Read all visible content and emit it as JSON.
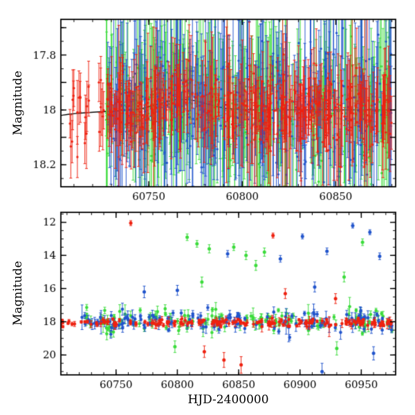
{
  "figure": {
    "background": "#ffffff",
    "axis_color": "#000000",
    "xlabel": "HJD-2400000",
    "ylabel": "Magnitude",
    "series_colors": {
      "red": "#ee2211",
      "green": "#3cdc3c",
      "blue": "#2255cc"
    },
    "model_line_color": "#000000",
    "seed": 42
  },
  "chart_data": [
    {
      "type": "scatter",
      "panel": "top",
      "title": "",
      "xlabel": "",
      "ylabel": "Magnitude",
      "xlim": [
        60703,
        60882
      ],
      "ylim": [
        17.67,
        18.28
      ],
      "y_axis_inverted_magnitude": true,
      "grid": false,
      "legend": null,
      "xticks": {
        "major": [
          60750,
          60800,
          60850
        ],
        "labels": [
          "60750",
          "60800",
          "60850"
        ],
        "minor_step": 10
      },
      "yticks": {
        "major": [
          17.7,
          17.8,
          17.9,
          18.0,
          18.1,
          18.2
        ],
        "labels": [
          "",
          "17.8",
          "",
          "18",
          "",
          "18.2"
        ],
        "minor_step": 0.05
      },
      "scatter_ramp": [
        0.75,
        1.6
      ],
      "bump": {
        "center": 60768,
        "sigma": 12,
        "amp": -0.04
      },
      "series": [
        {
          "name": "band-green",
          "color_key": "green",
          "n": 330,
          "x_range": [
            60727,
            60880
          ],
          "mag_base": 18.0,
          "mag_scatter": 0.085,
          "err_base": 0.05,
          "err_scatter": 0.16,
          "big_err_frac": 0.13,
          "big_err_mult": 3.2
        },
        {
          "name": "band-blue",
          "color_key": "blue",
          "n": 300,
          "x_range": [
            60727,
            60880
          ],
          "mag_base": 18.0,
          "mag_scatter": 0.095,
          "err_base": 0.05,
          "err_scatter": 0.15,
          "big_err_frac": 0.12,
          "big_err_mult": 3.2
        },
        {
          "name": "band-red",
          "color_key": "red",
          "n": 430,
          "x_range": [
            60727,
            60880
          ],
          "mag_base": 18.0,
          "mag_scatter": 0.05,
          "err_base": 0.03,
          "err_scatter": 0.07,
          "big_err_frac": 0.05,
          "big_err_mult": 3.0
        },
        {
          "name": "band-red-early",
          "color_key": "red",
          "n": 24,
          "x_range": [
            60704,
            60726
          ],
          "mag_base": 18.0,
          "mag_scatter": 0.11,
          "err_base": 0.05,
          "err_scatter": 0.05,
          "big_err_frac": 0.0,
          "big_err_mult": 1.0
        }
      ],
      "outliers": [],
      "model_line": [
        [
          60703,
          18.02
        ],
        [
          60707,
          18.016
        ],
        [
          60711,
          18.013
        ],
        [
          60715,
          18.011
        ],
        [
          60719,
          18.009
        ],
        [
          60723,
          18.007
        ],
        [
          60727,
          18.006
        ],
        [
          60731,
          18.005
        ],
        [
          60735,
          18.003
        ],
        [
          60739,
          18.001
        ],
        [
          60743,
          17.998
        ],
        [
          60747,
          17.994
        ],
        [
          60751,
          17.987
        ],
        [
          60755,
          17.979
        ],
        [
          60759,
          17.971
        ],
        [
          60763,
          17.964
        ],
        [
          60767,
          17.961
        ],
        [
          60771,
          17.962
        ],
        [
          60775,
          17.967
        ],
        [
          60779,
          17.974
        ],
        [
          60783,
          17.982
        ],
        [
          60787,
          17.989
        ],
        [
          60791,
          17.994
        ],
        [
          60795,
          17.997
        ],
        [
          60799,
          17.998
        ],
        [
          60805,
          18.0
        ],
        [
          60815,
          18.0
        ],
        [
          60830,
          18.0
        ],
        [
          60850,
          18.0
        ],
        [
          60880,
          18.0
        ]
      ]
    },
    {
      "type": "scatter",
      "panel": "bottom",
      "title": "",
      "xlabel": "HJD-2400000",
      "ylabel": "Magnitude",
      "xlim": [
        60705,
        60978
      ],
      "ylim": [
        11.4,
        21.2
      ],
      "y_axis_inverted_magnitude": true,
      "grid": false,
      "legend": null,
      "xticks": {
        "major": [
          60750,
          60800,
          60850,
          60900,
          60950
        ],
        "labels": [
          "60750",
          "60800",
          "60850",
          "60900",
          "60950"
        ],
        "minor_step": 10
      },
      "yticks": {
        "major": [
          12,
          14,
          16,
          18,
          20
        ],
        "labels": [
          "12",
          "14",
          "16",
          "18",
          "20"
        ],
        "minor_step": 0.5
      },
      "scatter_ramp": null,
      "bump": null,
      "series": [
        {
          "name": "band-green",
          "color_key": "green",
          "n": 145,
          "x_range": [
            60722,
            60975
          ],
          "mag_base": 17.95,
          "mag_scatter": 0.3,
          "err_base": 0.1,
          "err_scatter": 0.16,
          "big_err_frac": 0.05,
          "big_err_mult": 2.0
        },
        {
          "name": "band-blue",
          "color_key": "blue",
          "n": 145,
          "x_range": [
            60722,
            60975
          ],
          "mag_base": 18.0,
          "mag_scatter": 0.33,
          "err_base": 0.1,
          "err_scatter": 0.16,
          "big_err_frac": 0.05,
          "big_err_mult": 2.0
        },
        {
          "name": "band-red",
          "color_key": "red",
          "n": 175,
          "x_range": [
            60705,
            60975
          ],
          "mag_base": 18.05,
          "mag_scatter": 0.1,
          "err_base": 0.06,
          "err_scatter": 0.1,
          "big_err_frac": 0.04,
          "big_err_mult": 2.2
        }
      ],
      "outliers": [
        {
          "color_key": "red",
          "x": 60762,
          "mag": 12.05,
          "err": 0.15
        },
        {
          "color_key": "red",
          "x": 60878,
          "mag": 12.8,
          "err": 0.15
        },
        {
          "color_key": "red",
          "x": 60888,
          "mag": 16.3,
          "err": 0.3
        },
        {
          "color_key": "red",
          "x": 60838,
          "mag": 20.3,
          "err": 0.45
        },
        {
          "color_key": "red",
          "x": 60852,
          "mag": 20.6,
          "err": 0.5
        },
        {
          "color_key": "red",
          "x": 60822,
          "mag": 19.8,
          "err": 0.35
        },
        {
          "color_key": "red",
          "x": 60929,
          "mag": 16.6,
          "err": 0.3
        },
        {
          "color_key": "green",
          "x": 60808,
          "mag": 12.9,
          "err": 0.2
        },
        {
          "color_key": "green",
          "x": 60816,
          "mag": 13.3,
          "err": 0.2
        },
        {
          "color_key": "green",
          "x": 60826,
          "mag": 13.6,
          "err": 0.25
        },
        {
          "color_key": "green",
          "x": 60846,
          "mag": 13.5,
          "err": 0.2
        },
        {
          "color_key": "green",
          "x": 60856,
          "mag": 14.0,
          "err": 0.25
        },
        {
          "color_key": "green",
          "x": 60864,
          "mag": 14.6,
          "err": 0.3
        },
        {
          "color_key": "green",
          "x": 60871,
          "mag": 13.8,
          "err": 0.25
        },
        {
          "color_key": "green",
          "x": 60820,
          "mag": 15.6,
          "err": 0.3
        },
        {
          "color_key": "green",
          "x": 60936,
          "mag": 15.3,
          "err": 0.3
        },
        {
          "color_key": "green",
          "x": 60951,
          "mag": 13.2,
          "err": 0.2
        },
        {
          "color_key": "green",
          "x": 60930,
          "mag": 19.6,
          "err": 0.4
        },
        {
          "color_key": "green",
          "x": 60798,
          "mag": 19.5,
          "err": 0.35
        },
        {
          "color_key": "blue",
          "x": 60841,
          "mag": 13.9,
          "err": 0.2
        },
        {
          "color_key": "blue",
          "x": 60884,
          "mag": 14.2,
          "err": 0.2
        },
        {
          "color_key": "blue",
          "x": 60902,
          "mag": 12.85,
          "err": 0.15
        },
        {
          "color_key": "blue",
          "x": 60912,
          "mag": 15.9,
          "err": 0.3
        },
        {
          "color_key": "blue",
          "x": 60922,
          "mag": 13.75,
          "err": 0.2
        },
        {
          "color_key": "blue",
          "x": 60943,
          "mag": 12.2,
          "err": 0.15
        },
        {
          "color_key": "blue",
          "x": 60957,
          "mag": 12.6,
          "err": 0.15
        },
        {
          "color_key": "blue",
          "x": 60965,
          "mag": 14.05,
          "err": 0.2
        },
        {
          "color_key": "blue",
          "x": 60773,
          "mag": 16.2,
          "err": 0.35
        },
        {
          "color_key": "blue",
          "x": 60800,
          "mag": 16.1,
          "err": 0.3
        },
        {
          "color_key": "blue",
          "x": 60918,
          "mag": 21.0,
          "err": 0.5
        },
        {
          "color_key": "blue",
          "x": 60960,
          "mag": 19.9,
          "err": 0.4
        }
      ],
      "model_line": null
    }
  ]
}
